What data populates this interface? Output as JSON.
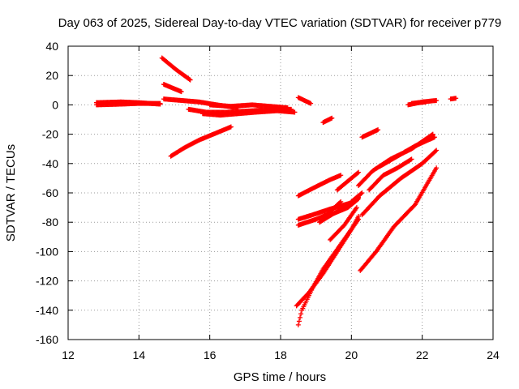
{
  "chart_data": {
    "type": "scatter",
    "title": "Day 063 of 2025, Sidereal Day-to-day VTEC variation (SDTVAR) for receiver p779",
    "xlabel": "GPS time / hours",
    "ylabel": "SDTVAR / TECUs",
    "xlim": [
      12,
      24
    ],
    "ylim": [
      -160,
      40
    ],
    "xticks": [
      "12",
      "14",
      "16",
      "18",
      "20",
      "22",
      "24"
    ],
    "yticks": [
      "40",
      "20",
      "0",
      "-20",
      "-40",
      "-60",
      "-80",
      "-100",
      "-120",
      "-140",
      "-160"
    ],
    "grid": true,
    "marker": "plus",
    "color": "#ff0000",
    "tracks": [
      {
        "points": [
          [
            12.8,
            0
          ],
          [
            13.5,
            0.5
          ],
          [
            14.0,
            1
          ],
          [
            14.6,
            1
          ]
        ]
      },
      {
        "points": [
          [
            12.8,
            1.5
          ],
          [
            13.5,
            2
          ],
          [
            14.0,
            1.5
          ],
          [
            14.6,
            0.5
          ]
        ]
      },
      {
        "points": [
          [
            14.7,
            4
          ],
          [
            15.2,
            3
          ],
          [
            15.7,
            2
          ],
          [
            16.2,
            0
          ],
          [
            16.8,
            -2
          ]
        ]
      },
      {
        "points": [
          [
            15.4,
            -3
          ],
          [
            15.9,
            -5
          ],
          [
            16.5,
            -5
          ],
          [
            17.2,
            -4
          ],
          [
            17.8,
            -3
          ],
          [
            18.3,
            -3
          ]
        ]
      },
      {
        "points": [
          [
            15.8,
            -6
          ],
          [
            16.3,
            -7
          ],
          [
            16.8,
            -6
          ],
          [
            17.3,
            -5
          ],
          [
            17.9,
            -4
          ],
          [
            18.4,
            -5
          ]
        ]
      },
      {
        "points": [
          [
            16.0,
            0
          ],
          [
            16.6,
            -1
          ],
          [
            17.2,
            0
          ],
          [
            17.7,
            -1
          ],
          [
            18.2,
            -2
          ]
        ]
      },
      {
        "points": [
          [
            14.65,
            32
          ],
          [
            15.05,
            24
          ],
          [
            15.45,
            17
          ]
        ]
      },
      {
        "points": [
          [
            14.7,
            14
          ],
          [
            15.2,
            9
          ]
        ]
      },
      {
        "points": [
          [
            14.9,
            -35
          ],
          [
            15.3,
            -29
          ],
          [
            15.7,
            -24
          ],
          [
            16.1,
            -20
          ],
          [
            16.6,
            -15
          ]
        ]
      },
      {
        "points": [
          [
            18.5,
            5
          ],
          [
            18.85,
            1
          ]
        ]
      },
      {
        "points": [
          [
            19.2,
            -12
          ],
          [
            19.45,
            -9
          ]
        ]
      },
      {
        "points": [
          [
            20.3,
            -22
          ],
          [
            20.75,
            -17
          ]
        ]
      },
      {
        "points": [
          [
            21.6,
            0
          ],
          [
            22.0,
            2
          ],
          [
            22.4,
            3
          ]
        ]
      },
      {
        "points": [
          [
            21.7,
            1
          ],
          [
            22.1,
            2
          ]
        ]
      },
      {
        "points": [
          [
            22.8,
            4
          ],
          [
            22.95,
            4.5
          ]
        ]
      },
      {
        "points": [
          [
            18.5,
            -62
          ],
          [
            18.9,
            -57
          ],
          [
            19.4,
            -51
          ],
          [
            19.7,
            -48
          ]
        ]
      },
      {
        "points": [
          [
            18.5,
            -78
          ],
          [
            18.9,
            -75
          ],
          [
            19.4,
            -71
          ],
          [
            20.1,
            -66
          ]
        ]
      },
      {
        "points": [
          [
            18.5,
            -82
          ],
          [
            19.0,
            -78
          ],
          [
            19.3,
            -75
          ],
          [
            19.7,
            -66
          ]
        ]
      },
      {
        "points": [
          [
            19.1,
            -80
          ],
          [
            19.5,
            -74
          ],
          [
            19.9,
            -69
          ],
          [
            20.2,
            -63
          ]
        ]
      },
      {
        "points": [
          [
            19.4,
            -75
          ],
          [
            19.9,
            -70
          ],
          [
            20.2,
            -64
          ]
        ]
      },
      {
        "points": [
          [
            19.6,
            -58
          ],
          [
            19.9,
            -52
          ],
          [
            20.2,
            -46
          ]
        ]
      },
      {
        "points": [
          [
            18.5,
            -150
          ],
          [
            18.6,
            -140
          ],
          [
            18.9,
            -125
          ],
          [
            19.2,
            -112
          ],
          [
            19.7,
            -95
          ],
          [
            20.2,
            -78
          ]
        ]
      },
      {
        "points": [
          [
            18.45,
            -137
          ],
          [
            18.8,
            -128
          ],
          [
            19.2,
            -115
          ],
          [
            19.6,
            -100
          ],
          [
            20.0,
            -85
          ],
          [
            20.2,
            -76
          ]
        ]
      },
      {
        "points": [
          [
            19.4,
            -92
          ],
          [
            19.8,
            -82
          ],
          [
            20.15,
            -70
          ]
        ]
      },
      {
        "points": [
          [
            20.2,
            -55
          ],
          [
            20.6,
            -45
          ],
          [
            21.1,
            -37
          ],
          [
            21.7,
            -30
          ],
          [
            22.3,
            -20
          ]
        ]
      },
      {
        "points": [
          [
            20.25,
            -113
          ],
          [
            20.7,
            -100
          ],
          [
            21.2,
            -83
          ],
          [
            21.8,
            -68
          ],
          [
            22.4,
            -43
          ]
        ]
      },
      {
        "points": [
          [
            20.3,
            -75
          ],
          [
            20.8,
            -62
          ],
          [
            21.4,
            -50
          ],
          [
            22.0,
            -40
          ],
          [
            22.4,
            -31
          ]
        ]
      },
      {
        "points": [
          [
            20.5,
            -58
          ],
          [
            20.9,
            -48
          ],
          [
            21.3,
            -43
          ],
          [
            21.7,
            -37
          ]
        ]
      },
      {
        "points": [
          [
            20.8,
            -42
          ],
          [
            21.3,
            -35
          ],
          [
            21.8,
            -28
          ],
          [
            22.35,
            -22
          ]
        ]
      },
      {
        "points": [
          [
            20.0,
            -66
          ],
          [
            20.3,
            -60
          ]
        ]
      }
    ]
  }
}
